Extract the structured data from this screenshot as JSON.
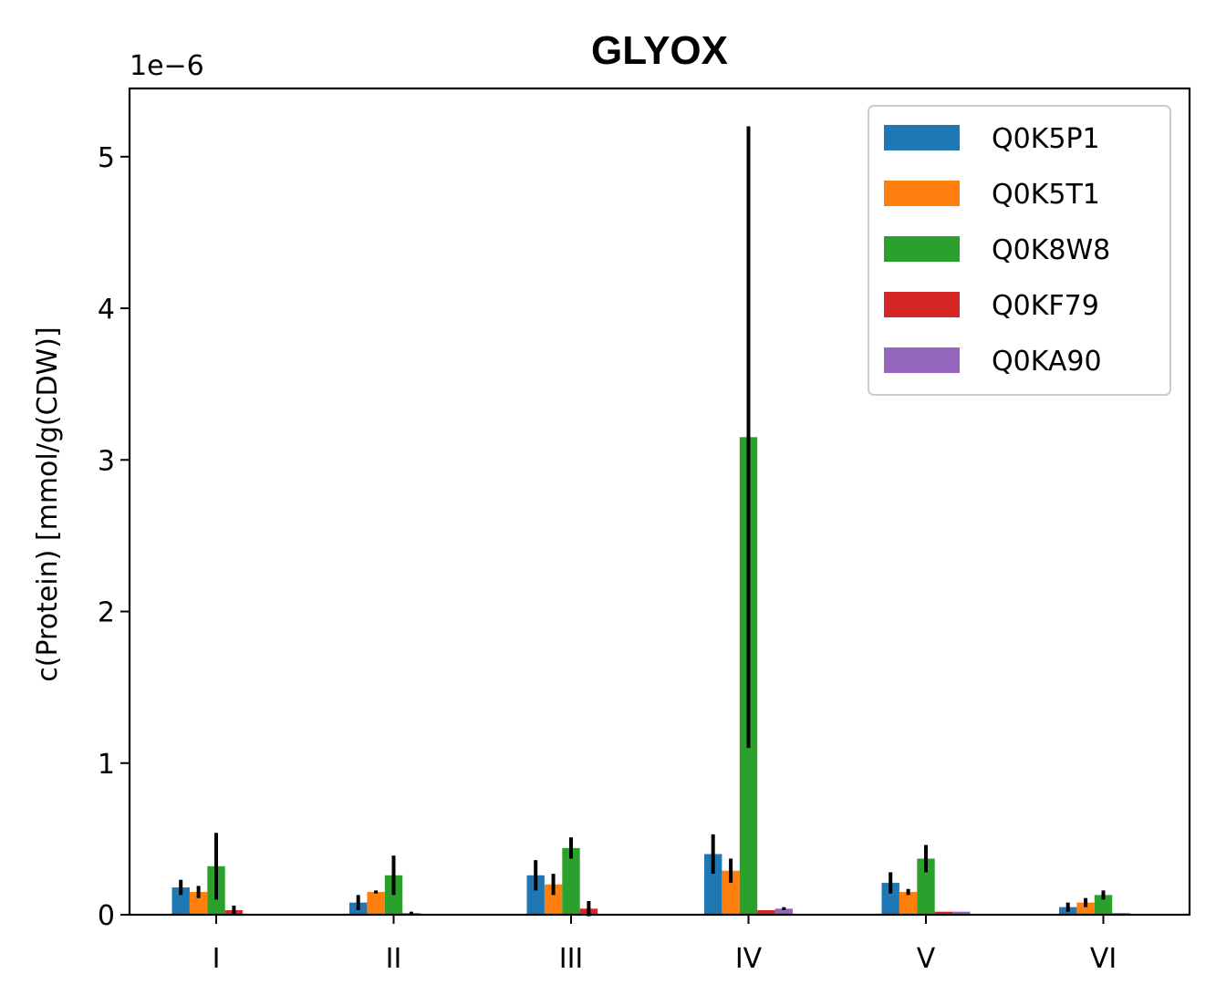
{
  "chart_data": {
    "type": "bar",
    "title": "GLYOX",
    "xlabel": "",
    "ylabel": "c(Protein) [mmol/g(CDW)]",
    "offset_text": "1e−6",
    "y_scale_exponent": -6,
    "ylim": [
      0,
      5.45
    ],
    "yticks": [
      0,
      1,
      2,
      3,
      4,
      5
    ],
    "grid": false,
    "legend_position": "top-right",
    "categories": [
      "I",
      "II",
      "III",
      "IV",
      "V",
      "VI"
    ],
    "series": [
      {
        "name": "Q0K5P1",
        "color": "#1f77b4",
        "values": [
          0.18,
          0.08,
          0.26,
          0.4,
          0.21,
          0.05
        ],
        "errors": [
          0.05,
          0.05,
          0.1,
          0.13,
          0.07,
          0.03
        ]
      },
      {
        "name": "Q0K5T1",
        "color": "#ff7f0e",
        "values": [
          0.15,
          0.15,
          0.2,
          0.29,
          0.15,
          0.08
        ],
        "errors": [
          0.04,
          0.01,
          0.07,
          0.08,
          0.02,
          0.03
        ]
      },
      {
        "name": "Q0K8W8",
        "color": "#2ca02c",
        "values": [
          0.32,
          0.26,
          0.44,
          3.15,
          0.37,
          0.13
        ],
        "errors": [
          0.22,
          0.13,
          0.07,
          2.05,
          0.09,
          0.03
        ]
      },
      {
        "name": "Q0KF79",
        "color": "#d62728",
        "values": [
          0.03,
          0.01,
          0.04,
          0.03,
          0.02,
          0.01
        ],
        "errors": [
          0.03,
          0.01,
          0.05,
          0.0,
          0.0,
          0.0
        ]
      },
      {
        "name": "Q0KA90",
        "color": "#9467bd",
        "values": [
          0.0,
          0.0,
          0.0,
          0.04,
          0.02,
          0.005
        ],
        "errors": [
          0.0,
          0.0,
          0.0,
          0.01,
          0.0,
          0.0
        ]
      }
    ]
  }
}
